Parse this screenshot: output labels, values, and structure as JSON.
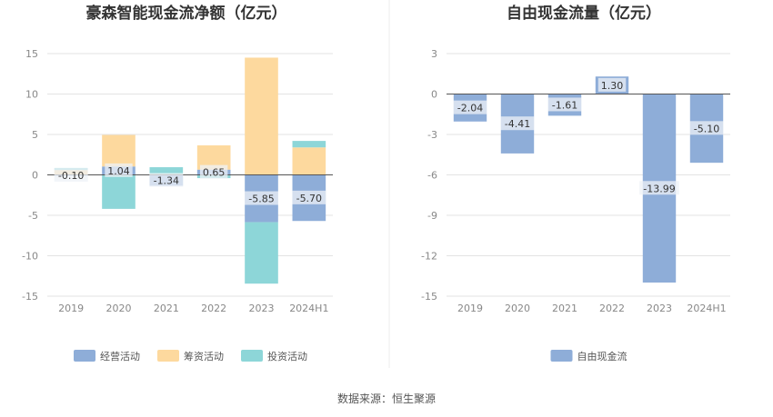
{
  "colors": {
    "operating": "#8eadd8",
    "financing": "#fdd99e",
    "investing": "#8dd6d8",
    "fcf": "#8eadd8",
    "grid": "#e3e3e3",
    "zero_line": "#555555",
    "label_bg": "#eef1f7"
  },
  "source": "数据来源：恒生聚源",
  "chart_data": [
    {
      "type": "bar",
      "stacked": true,
      "title": "豪森智能现金流净额（亿元）",
      "categories": [
        "2019",
        "2020",
        "2021",
        "2022",
        "2023",
        "2024H1"
      ],
      "ylim": [
        -15,
        15
      ],
      "yticks": [
        15,
        10,
        5,
        0,
        -5,
        -10,
        -15
      ],
      "grid": true,
      "legend_position": "bottom",
      "series": [
        {
          "name": "经营活动",
          "color_key": "operating",
          "values": [
            -0.1,
            1.04,
            -1.34,
            0.65,
            -5.85,
            -5.7
          ],
          "labels": [
            "-0.10",
            "1.04",
            "-1.34",
            "0.65",
            "-5.85",
            "-5.70"
          ]
        },
        {
          "name": "筹资活动",
          "color_key": "financing",
          "values": [
            0.6,
            3.9,
            0.1,
            3.0,
            14.5,
            3.4
          ]
        },
        {
          "name": "投资活动",
          "color_key": "investing",
          "values": [
            0.25,
            -4.2,
            0.85,
            -0.4,
            -7.6,
            0.8
          ]
        }
      ]
    },
    {
      "type": "bar",
      "title": "自由现金流量（亿元）",
      "categories": [
        "2019",
        "2020",
        "2021",
        "2022",
        "2023",
        "2024H1"
      ],
      "ylim": [
        -15,
        3
      ],
      "yticks": [
        3,
        0,
        -3,
        -6,
        -9,
        -12,
        -15
      ],
      "grid": true,
      "legend_position": "bottom",
      "series": [
        {
          "name": "自由现金流",
          "color_key": "fcf",
          "values": [
            -2.04,
            -4.41,
            -1.61,
            1.3,
            -13.99,
            -5.1
          ],
          "labels": [
            "-2.04",
            "-4.41",
            "-1.61",
            "1.30",
            "-13.99",
            "-5.10"
          ]
        }
      ]
    }
  ]
}
